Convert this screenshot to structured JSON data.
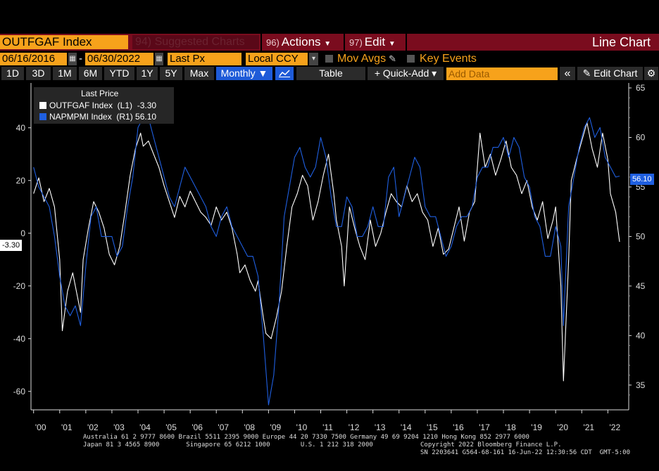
{
  "toolbar": {
    "ticker": "OUTFGAF Index",
    "suggested": "94) Suggested Charts",
    "actions_num": "96)",
    "actions_label": "Actions",
    "edit_num": "97)",
    "edit_label": "Edit",
    "chart_type": "Line Chart"
  },
  "settings": {
    "start_date": "06/16/2016",
    "end_date": "06/30/2022",
    "dash": "-",
    "price_field": "Last Px",
    "currency": "Local CCY",
    "mov_avgs": "Mov Avgs",
    "key_events": "Key Events"
  },
  "periods": [
    "1D",
    "3D",
    "1M",
    "6M",
    "YTD",
    "1Y",
    "5Y",
    "Max"
  ],
  "frequency": "Monthly ▼",
  "table_label": "Table",
  "quick_add": "+ Quick-Add ▾",
  "add_data_placeholder": "Add Data",
  "collapse_glyph": "«",
  "edit_chart": "✎ Edit Chart",
  "gear_glyph": "⚙",
  "legend": {
    "title": "Last Price",
    "s1": "OUTFGAF Index  (L1)  -3.30",
    "s2": "NAPMPMI Index  (R1) 56.10"
  },
  "current_left": "-3.30",
  "current_right": "56.10",
  "footer": {
    "line1": "Australia 61 2 9777 8600 Brazil 5511 2395 9000 Europe 44 20 7330 7500 Germany 49 69 9204 1210 Hong Kong 852 2977 6000",
    "line2": "Japan 81 3 4565 8900       Singapore 65 6212 1000        U.S. 1 212 318 2000",
    "line3": "Copyright 2022 Bloomberg Finance L.P.",
    "line4": "SN 2203641 G564-68-161 16-Jun-22 12:30:56 CDT  GMT-5:00"
  },
  "colors": {
    "orange": "#f7a21b",
    "maroon": "#7a0c1e",
    "blue_series": "#1f5fe0",
    "white_series": "#ffffff"
  },
  "chart_data": {
    "type": "line",
    "x_ticks": [
      "'00",
      "'01",
      "'02",
      "'03",
      "'04",
      "'05",
      "'06",
      "'07",
      "'08",
      "'09",
      "'10",
      "'11",
      "'12",
      "'13",
      "'14",
      "'15",
      "'16",
      "'17",
      "'18",
      "'19",
      "'20",
      "'21",
      "'22"
    ],
    "left_axis": {
      "ticks": [
        40,
        20,
        0,
        -20,
        -40,
        -60
      ],
      "ylim": [
        -67,
        57
      ]
    },
    "right_axis": {
      "ticks": [
        65,
        60,
        55,
        50,
        45,
        40,
        35
      ],
      "ylim": [
        32.5,
        65.5
      ]
    },
    "x_range": [
      1999.9,
      2022.8
    ],
    "series": [
      {
        "name": "OUTFGAF Index",
        "axis": "left",
        "color": "#ffffff",
        "last": -3.3,
        "points": [
          [
            2000.0,
            15
          ],
          [
            2000.2,
            21
          ],
          [
            2000.4,
            12
          ],
          [
            2000.6,
            17
          ],
          [
            2000.8,
            10
          ],
          [
            2001.0,
            -10
          ],
          [
            2001.1,
            -37
          ],
          [
            2001.3,
            -22
          ],
          [
            2001.5,
            -15
          ],
          [
            2001.6,
            -20
          ],
          [
            2001.8,
            -30
          ],
          [
            2001.9,
            -10
          ],
          [
            2002.1,
            2
          ],
          [
            2002.3,
            12
          ],
          [
            2002.5,
            8
          ],
          [
            2002.7,
            2
          ],
          [
            2002.9,
            -8
          ],
          [
            2003.1,
            -12
          ],
          [
            2003.3,
            -5
          ],
          [
            2003.5,
            8
          ],
          [
            2003.7,
            22
          ],
          [
            2003.9,
            32
          ],
          [
            2004.1,
            38
          ],
          [
            2004.2,
            33
          ],
          [
            2004.4,
            35
          ],
          [
            2004.6,
            30
          ],
          [
            2004.8,
            25
          ],
          [
            2005.0,
            18
          ],
          [
            2005.2,
            12
          ],
          [
            2005.4,
            6
          ],
          [
            2005.6,
            14
          ],
          [
            2005.8,
            10
          ],
          [
            2006.0,
            16
          ],
          [
            2006.2,
            12
          ],
          [
            2006.4,
            8
          ],
          [
            2006.6,
            6
          ],
          [
            2006.8,
            3
          ],
          [
            2007.0,
            10
          ],
          [
            2007.2,
            5
          ],
          [
            2007.4,
            8
          ],
          [
            2007.6,
            2
          ],
          [
            2007.8,
            -8
          ],
          [
            2007.9,
            -15
          ],
          [
            2008.1,
            -12
          ],
          [
            2008.3,
            -18
          ],
          [
            2008.5,
            -22
          ],
          [
            2008.6,
            -18
          ],
          [
            2008.8,
            -32
          ],
          [
            2008.9,
            -38
          ],
          [
            2009.1,
            -40
          ],
          [
            2009.3,
            -32
          ],
          [
            2009.5,
            -22
          ],
          [
            2009.7,
            -5
          ],
          [
            2009.9,
            10
          ],
          [
            2010.1,
            15
          ],
          [
            2010.3,
            22
          ],
          [
            2010.5,
            18
          ],
          [
            2010.7,
            5
          ],
          [
            2010.9,
            12
          ],
          [
            2011.1,
            22
          ],
          [
            2011.3,
            30
          ],
          [
            2011.5,
            15
          ],
          [
            2011.6,
            5
          ],
          [
            2011.8,
            -5
          ],
          [
            2011.9,
            -20
          ],
          [
            2012.1,
            10
          ],
          [
            2012.3,
            2
          ],
          [
            2012.5,
            -5
          ],
          [
            2012.7,
            -10
          ],
          [
            2012.9,
            5
          ],
          [
            2013.1,
            -5
          ],
          [
            2013.3,
            0
          ],
          [
            2013.5,
            8
          ],
          [
            2013.7,
            15
          ],
          [
            2013.9,
            12
          ],
          [
            2014.1,
            10
          ],
          [
            2014.3,
            18
          ],
          [
            2014.5,
            12
          ],
          [
            2014.7,
            15
          ],
          [
            2014.9,
            8
          ],
          [
            2015.1,
            5
          ],
          [
            2015.3,
            -5
          ],
          [
            2015.5,
            2
          ],
          [
            2015.7,
            -8
          ],
          [
            2015.9,
            -6
          ],
          [
            2016.1,
            2
          ],
          [
            2016.3,
            10
          ],
          [
            2016.5,
            -3
          ],
          [
            2016.7,
            8
          ],
          [
            2016.9,
            12
          ],
          [
            2017.1,
            38
          ],
          [
            2017.3,
            25
          ],
          [
            2017.5,
            30
          ],
          [
            2017.7,
            22
          ],
          [
            2017.9,
            28
          ],
          [
            2018.1,
            35
          ],
          [
            2018.3,
            25
          ],
          [
            2018.5,
            22
          ],
          [
            2018.7,
            15
          ],
          [
            2018.9,
            20
          ],
          [
            2019.1,
            10
          ],
          [
            2019.3,
            5
          ],
          [
            2019.5,
            12
          ],
          [
            2019.7,
            -2
          ],
          [
            2019.9,
            5
          ],
          [
            2020.0,
            10
          ],
          [
            2020.2,
            -20
          ],
          [
            2020.3,
            -56
          ],
          [
            2020.5,
            -10
          ],
          [
            2020.6,
            20
          ],
          [
            2020.8,
            28
          ],
          [
            2021.0,
            35
          ],
          [
            2021.2,
            42
          ],
          [
            2021.4,
            32
          ],
          [
            2021.6,
            25
          ],
          [
            2021.8,
            38
          ],
          [
            2022.0,
            28
          ],
          [
            2022.1,
            15
          ],
          [
            2022.3,
            8
          ],
          [
            2022.45,
            -3.3
          ]
        ]
      },
      {
        "name": "NAPMPMI Index",
        "axis": "right",
        "color": "#1f5fe0",
        "last": 56.1,
        "points": [
          [
            2000.0,
            57
          ],
          [
            2000.2,
            55
          ],
          [
            2000.4,
            54
          ],
          [
            2000.6,
            53
          ],
          [
            2000.8,
            50
          ],
          [
            2001.0,
            46
          ],
          [
            2001.2,
            43
          ],
          [
            2001.4,
            42
          ],
          [
            2001.6,
            43
          ],
          [
            2001.8,
            41
          ],
          [
            2002.0,
            47
          ],
          [
            2002.2,
            52
          ],
          [
            2002.4,
            53
          ],
          [
            2002.6,
            50
          ],
          [
            2002.8,
            50
          ],
          [
            2003.0,
            50
          ],
          [
            2003.2,
            48
          ],
          [
            2003.4,
            49
          ],
          [
            2003.6,
            53
          ],
          [
            2003.8,
            56
          ],
          [
            2004.0,
            61
          ],
          [
            2004.2,
            62
          ],
          [
            2004.4,
            62
          ],
          [
            2004.6,
            60
          ],
          [
            2004.8,
            58
          ],
          [
            2005.0,
            56
          ],
          [
            2005.2,
            54
          ],
          [
            2005.4,
            53
          ],
          [
            2005.6,
            55
          ],
          [
            2005.8,
            57
          ],
          [
            2006.0,
            56
          ],
          [
            2006.2,
            55
          ],
          [
            2006.4,
            54
          ],
          [
            2006.6,
            53
          ],
          [
            2006.8,
            51
          ],
          [
            2007.0,
            50
          ],
          [
            2007.2,
            52
          ],
          [
            2007.4,
            53
          ],
          [
            2007.6,
            51
          ],
          [
            2007.8,
            50
          ],
          [
            2008.0,
            49
          ],
          [
            2008.2,
            48
          ],
          [
            2008.4,
            48
          ],
          [
            2008.6,
            46
          ],
          [
            2008.8,
            40
          ],
          [
            2009.0,
            33
          ],
          [
            2009.2,
            36
          ],
          [
            2009.4,
            43
          ],
          [
            2009.6,
            52
          ],
          [
            2009.8,
            55
          ],
          [
            2010.0,
            58
          ],
          [
            2010.2,
            59
          ],
          [
            2010.4,
            57
          ],
          [
            2010.6,
            56
          ],
          [
            2010.8,
            57
          ],
          [
            2011.0,
            60
          ],
          [
            2011.2,
            58
          ],
          [
            2011.4,
            54
          ],
          [
            2011.6,
            51
          ],
          [
            2011.8,
            51
          ],
          [
            2012.0,
            54
          ],
          [
            2012.2,
            53
          ],
          [
            2012.4,
            50
          ],
          [
            2012.6,
            50
          ],
          [
            2012.8,
            51
          ],
          [
            2013.0,
            53
          ],
          [
            2013.2,
            51
          ],
          [
            2013.4,
            51
          ],
          [
            2013.6,
            56
          ],
          [
            2013.8,
            57
          ],
          [
            2014.0,
            52
          ],
          [
            2014.2,
            54
          ],
          [
            2014.4,
            56
          ],
          [
            2014.6,
            58
          ],
          [
            2014.8,
            57
          ],
          [
            2015.0,
            53
          ],
          [
            2015.2,
            52
          ],
          [
            2015.4,
            52
          ],
          [
            2015.6,
            50
          ],
          [
            2015.8,
            48
          ],
          [
            2016.0,
            49
          ],
          [
            2016.2,
            51
          ],
          [
            2016.4,
            52
          ],
          [
            2016.6,
            52
          ],
          [
            2016.8,
            53
          ],
          [
            2017.0,
            56
          ],
          [
            2017.2,
            57
          ],
          [
            2017.4,
            57
          ],
          [
            2017.6,
            59
          ],
          [
            2017.8,
            59
          ],
          [
            2018.0,
            60
          ],
          [
            2018.2,
            58
          ],
          [
            2018.4,
            60
          ],
          [
            2018.6,
            59
          ],
          [
            2018.8,
            56
          ],
          [
            2019.0,
            55
          ],
          [
            2019.2,
            52
          ],
          [
            2019.4,
            51
          ],
          [
            2019.6,
            48
          ],
          [
            2019.8,
            48
          ],
          [
            2020.0,
            51
          ],
          [
            2020.2,
            49
          ],
          [
            2020.3,
            41
          ],
          [
            2020.5,
            53
          ],
          [
            2020.7,
            56
          ],
          [
            2020.9,
            59
          ],
          [
            2021.1,
            61
          ],
          [
            2021.3,
            62
          ],
          [
            2021.5,
            60
          ],
          [
            2021.7,
            61
          ],
          [
            2021.9,
            58
          ],
          [
            2022.1,
            57
          ],
          [
            2022.3,
            56
          ],
          [
            2022.45,
            56.1
          ]
        ]
      }
    ]
  }
}
